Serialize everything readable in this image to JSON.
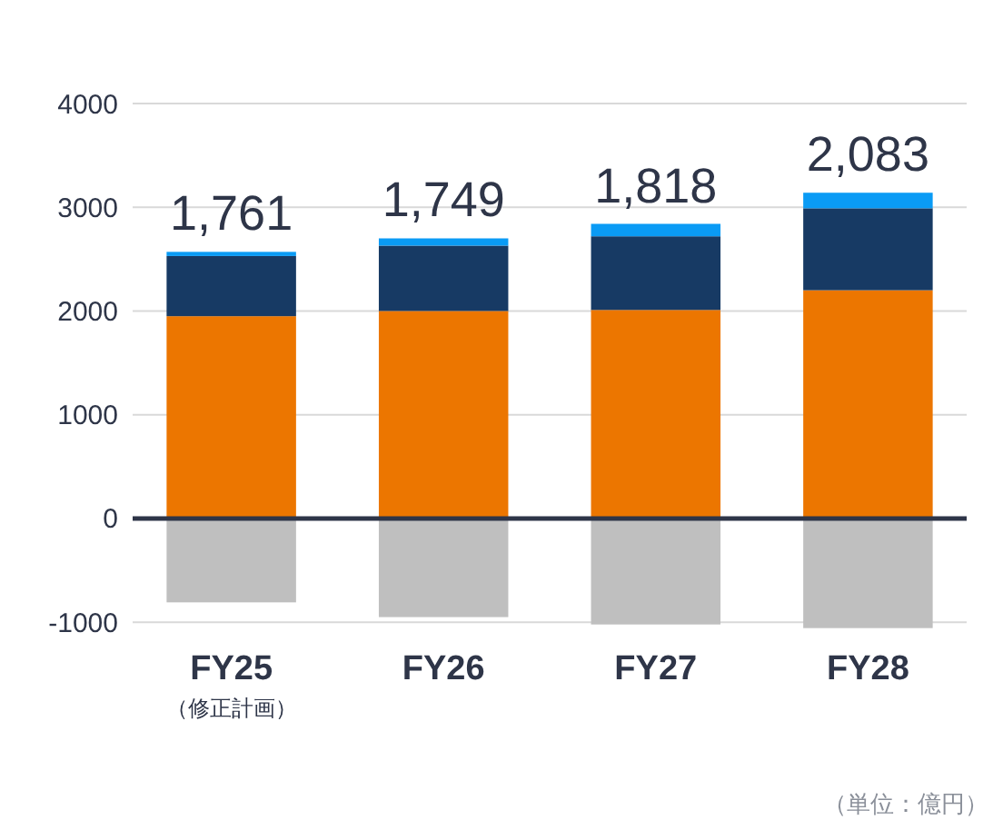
{
  "chart_data": {
    "type": "bar",
    "stacked": true,
    "categories": [
      "FY25",
      "FY26",
      "FY27",
      "FY28"
    ],
    "series": [
      {
        "color": "#ec7600",
        "values": [
          1950,
          2000,
          2010,
          2200
        ]
      },
      {
        "color": "#173a64",
        "values": [
          580,
          630,
          710,
          790
        ]
      },
      {
        "color": "#0a9bf5",
        "values": [
          40,
          70,
          120,
          150
        ]
      },
      {
        "color": "#bfbfbf",
        "values": [
          -809,
          -951,
          -1022,
          -1057
        ]
      }
    ],
    "totals": [
      "1,761",
      "1,749",
      "1,818",
      "2,083"
    ],
    "ylim": [
      -1060,
      4000
    ],
    "yticks": [
      -1000,
      0,
      1000,
      2000,
      3000,
      4000
    ],
    "grid": "y",
    "annotations": [
      "（修正計画）",
      "（単位：億円）"
    ]
  }
}
